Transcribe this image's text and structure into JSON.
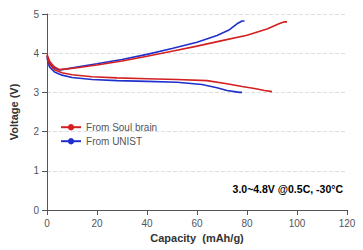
{
  "chart_data": {
    "type": "line",
    "xlabel": "Capacity  (mAh/g)",
    "ylabel": "Voltage (V)",
    "xlim": [
      0,
      120
    ],
    "ylim": [
      0.0,
      5.0
    ],
    "xticks": [
      0,
      20,
      40,
      60,
      80,
      100,
      120
    ],
    "yticks": [
      0,
      1,
      2,
      3,
      4,
      5
    ],
    "grid": true,
    "legend": "lower left",
    "annotation": "3.0~4.8V @0.5C, -30°C",
    "series": [
      {
        "name": "From UNIST",
        "color": "#2030cc",
        "x": [
          0,
          1,
          2,
          3,
          5,
          8,
          12,
          20,
          30,
          40,
          50,
          60,
          68,
          73,
          76,
          78,
          79
        ],
        "values": [
          3.93,
          3.75,
          3.68,
          3.62,
          3.57,
          3.6,
          3.65,
          3.73,
          3.84,
          3.97,
          4.12,
          4.28,
          4.45,
          4.6,
          4.75,
          4.82,
          4.82
        ]
      },
      {
        "name": "From UNIST",
        "color": "#2030cc",
        "x": [
          0,
          1,
          3,
          6,
          10,
          18,
          28,
          40,
          52,
          62,
          68,
          72,
          75,
          77,
          78
        ],
        "values": [
          3.88,
          3.65,
          3.52,
          3.44,
          3.38,
          3.33,
          3.3,
          3.28,
          3.26,
          3.2,
          3.12,
          3.05,
          3.02,
          3.0,
          3.0
        ]
      },
      {
        "name": "From Soul brain",
        "color": "#d42020",
        "x": [
          0,
          1,
          2,
          3,
          5,
          8,
          12,
          20,
          30,
          40,
          50,
          60,
          70,
          80,
          88,
          93,
          95,
          96
        ],
        "values": [
          3.97,
          3.8,
          3.72,
          3.65,
          3.58,
          3.6,
          3.63,
          3.7,
          3.8,
          3.92,
          4.05,
          4.18,
          4.32,
          4.46,
          4.62,
          4.76,
          4.8,
          4.8
        ]
      },
      {
        "name": "From Soul brain",
        "color": "#d42020",
        "x": [
          0,
          1,
          3,
          6,
          10,
          18,
          28,
          40,
          52,
          64,
          72,
          78,
          83,
          87,
          90
        ],
        "values": [
          3.94,
          3.72,
          3.58,
          3.5,
          3.45,
          3.4,
          3.37,
          3.35,
          3.33,
          3.3,
          3.22,
          3.15,
          3.1,
          3.05,
          3.02
        ]
      }
    ]
  }
}
